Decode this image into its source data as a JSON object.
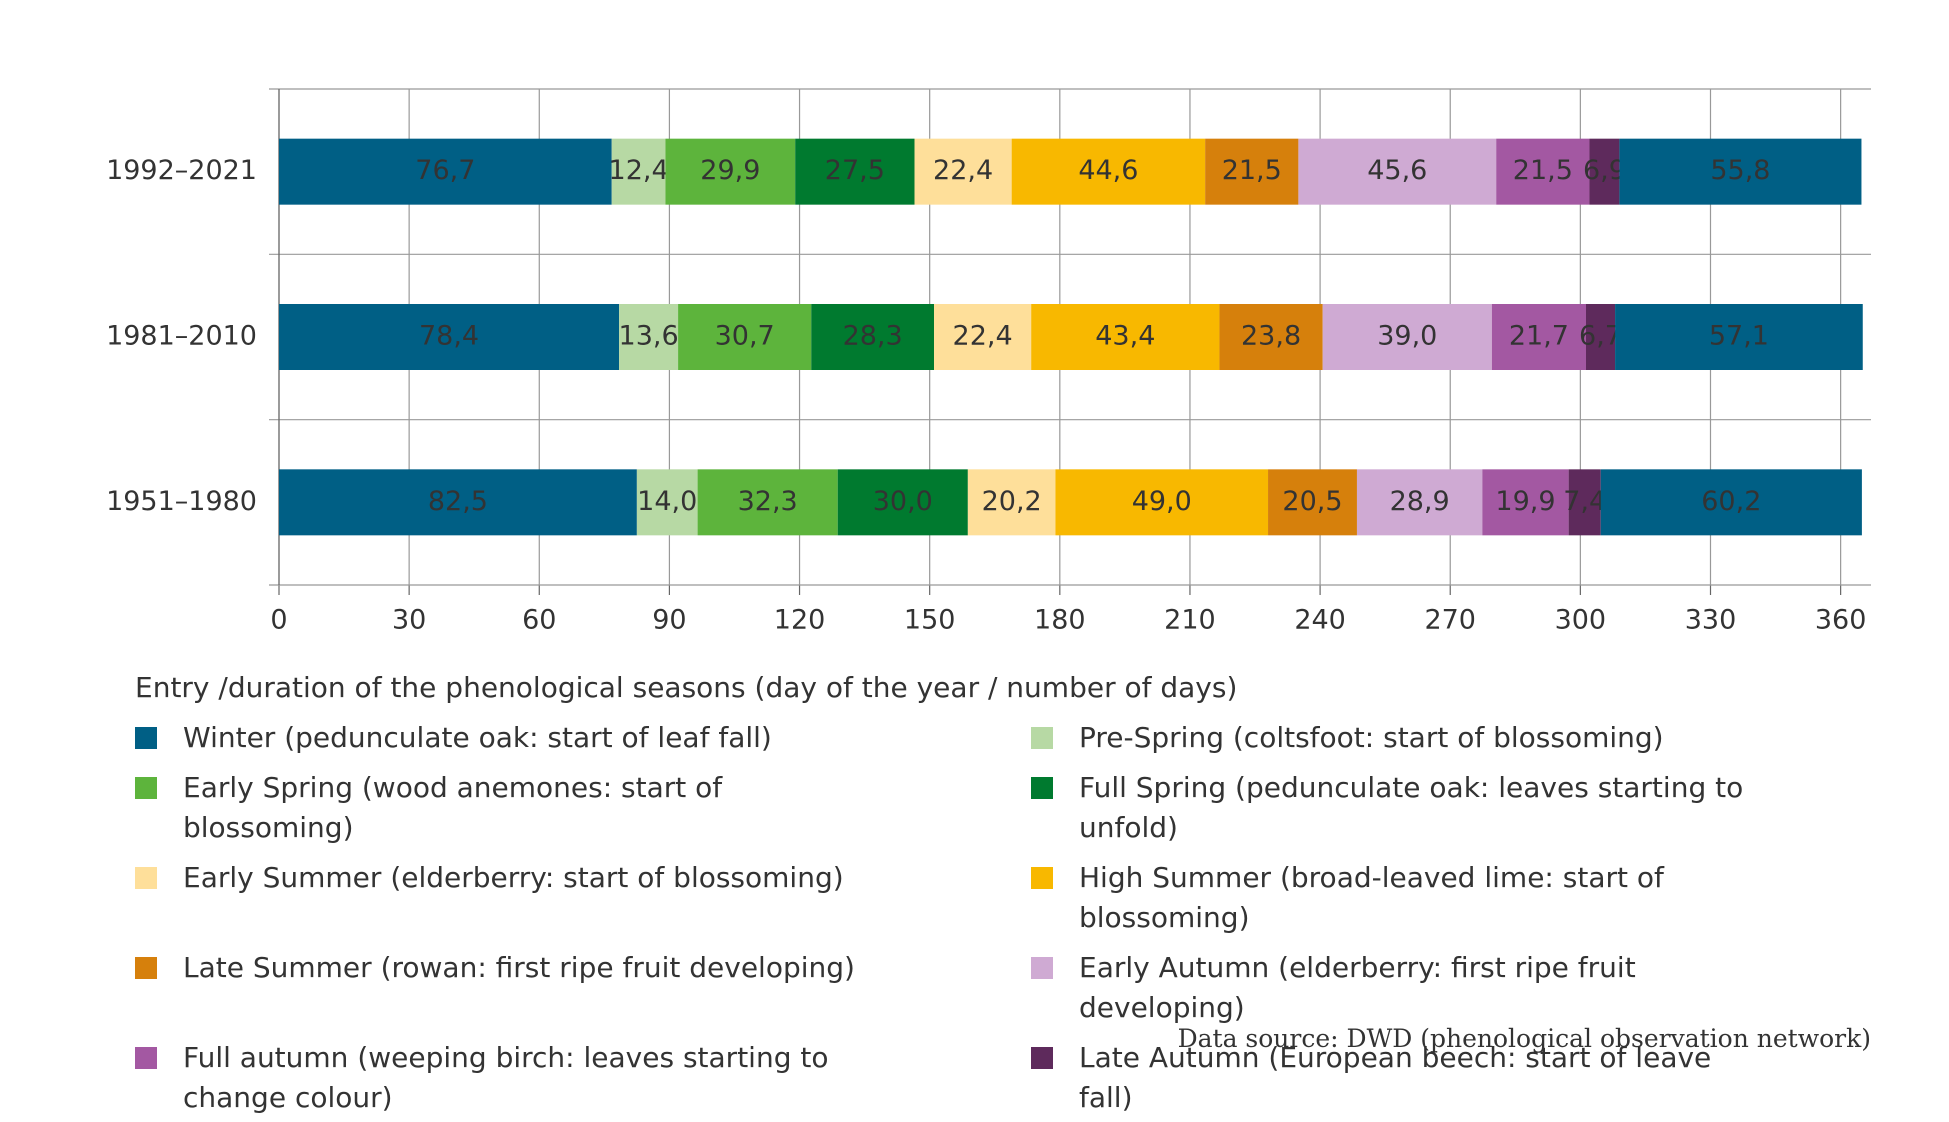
{
  "chart_data": {
    "type": "stacked-barh",
    "categories": [
      "1992–2021",
      "1981–2010",
      "1951–1980"
    ],
    "series": [
      {
        "name": "Winter (pedunculate oak: start of leaf fall)",
        "color": "#005f85",
        "values": [
          76.7,
          78.4,
          82.5
        ],
        "value_labels": [
          "76,7",
          "78,4",
          "82,5"
        ]
      },
      {
        "name": "Pre-Spring (coltsfoot: start of blossoming)",
        "color": "#b7d9a4",
        "values": [
          12.4,
          13.6,
          14.0
        ],
        "value_labels": [
          "12,4",
          "13,6",
          "14,0"
        ]
      },
      {
        "name": "Early Spring (wood anemones: start of blossoming)",
        "color": "#5db43c",
        "values": [
          29.9,
          30.7,
          32.3
        ],
        "value_labels": [
          "29,9",
          "30,7",
          "32,3"
        ]
      },
      {
        "name": "Full Spring (pedunculate oak: leaves starting to unfold)",
        "color": "#007a2f",
        "values": [
          27.5,
          28.3,
          30.0
        ],
        "value_labels": [
          "27,5",
          "28,3",
          "30,0"
        ]
      },
      {
        "name": "Early Summer (elderberry: start of blossoming)",
        "color": "#fedf9a",
        "values": [
          22.4,
          22.4,
          20.2
        ],
        "value_labels": [
          "22,4",
          "22,4",
          "20,2"
        ]
      },
      {
        "name": "High Summer (broad-leaved lime: start of blossoming)",
        "color": "#f8b800",
        "values": [
          44.6,
          43.4,
          49.0
        ],
        "value_labels": [
          "44,6",
          "43,4",
          "49,0"
        ]
      },
      {
        "name": "Late Summer (rowan: first ripe fruit developing)",
        "color": "#d6800c",
        "values": [
          21.5,
          23.8,
          20.5
        ],
        "value_labels": [
          "21,5",
          "23,8",
          "20,5"
        ]
      },
      {
        "name": "Early Autumn (elderberry: first ripe fruit developing)",
        "color": "#cfaad3",
        "values": [
          45.6,
          39.0,
          28.9
        ],
        "value_labels": [
          "45,6",
          "39,0",
          "28,9"
        ]
      },
      {
        "name": "Full autumn (weeping birch: leaves starting to change colour)",
        "color": "#a358a2",
        "values": [
          21.5,
          21.7,
          19.9
        ],
        "value_labels": [
          "21,5",
          "21,7",
          "19,9"
        ]
      },
      {
        "name": "Late Autumn (European beech: start of leave fall)",
        "color": "#5e2a5c",
        "values": [
          6.9,
          6.7,
          7.4
        ],
        "value_labels": [
          "6,9",
          "6,7",
          "7,4"
        ]
      },
      {
        "color": "#005f85",
        "values": [
          55.8,
          57.1,
          60.2
        ],
        "value_labels": [
          "55,8",
          "57,1",
          "60,2"
        ]
      }
    ],
    "xlim": [
      0,
      367
    ],
    "xticks": [
      0,
      30,
      60,
      90,
      120,
      150,
      180,
      210,
      240,
      270,
      300,
      330,
      360
    ],
    "grid": true,
    "legend_title": "Entry /duration of the phenological seasons (day of the year / number of days)",
    "source": "Data source: DWD (phenological observation network)"
  }
}
